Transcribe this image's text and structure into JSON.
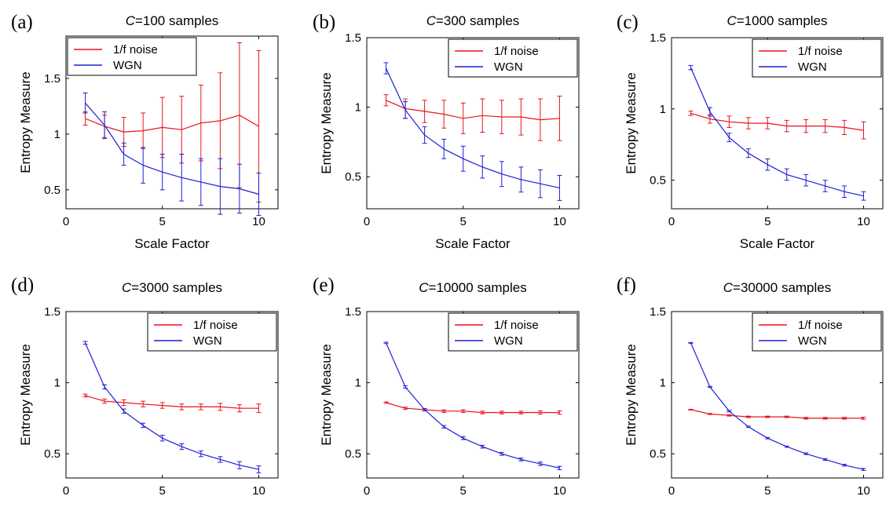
{
  "chart_data": [
    {
      "type": "line",
      "panel_label": "(a)",
      "title_var": "C",
      "title_rest": "=100 samples",
      "xlabel": "Scale Factor",
      "ylabel": "Entropy Measure",
      "xlim": [
        0,
        11
      ],
      "ylim": [
        0.33,
        1.88
      ],
      "xticks": [
        0,
        5,
        10
      ],
      "yticks": [
        0.5,
        1,
        1.5
      ],
      "yticklabels": [
        "0.5",
        "1",
        "1.5"
      ],
      "legend_position": "top-left",
      "x": [
        1,
        2,
        3,
        4,
        5,
        6,
        7,
        8,
        9,
        10
      ],
      "series": [
        {
          "name": "1/f noise",
          "color": "#e8141c",
          "values": [
            1.14,
            1.07,
            1.02,
            1.03,
            1.06,
            1.04,
            1.1,
            1.12,
            1.17,
            1.07
          ],
          "err": [
            0.06,
            0.1,
            0.13,
            0.16,
            0.27,
            0.3,
            0.34,
            0.43,
            0.65,
            0.68
          ]
        },
        {
          "name": "WGN",
          "color": "#1f1fd8",
          "values": [
            1.28,
            1.08,
            0.82,
            0.72,
            0.66,
            0.61,
            0.57,
            0.53,
            0.51,
            0.46
          ],
          "err": [
            0.09,
            0.12,
            0.1,
            0.16,
            0.16,
            0.21,
            0.21,
            0.25,
            0.22,
            0.19
          ]
        }
      ]
    },
    {
      "type": "line",
      "panel_label": "(b)",
      "title_var": "C",
      "title_rest": "=300 samples",
      "xlabel": "Scale Factor",
      "ylabel": "Entropy Measure",
      "xlim": [
        0,
        11
      ],
      "ylim": [
        0.27,
        1.5
      ],
      "xticks": [
        0,
        5,
        10
      ],
      "yticks": [
        0.5,
        1,
        1.5
      ],
      "yticklabels": [
        "0.5",
        "1",
        "1.5"
      ],
      "legend_position": "top-right",
      "x": [
        1,
        2,
        3,
        4,
        5,
        6,
        7,
        8,
        9,
        10
      ],
      "series": [
        {
          "name": "1/f noise",
          "color": "#e8141c",
          "values": [
            1.05,
            0.99,
            0.97,
            0.95,
            0.92,
            0.94,
            0.93,
            0.93,
            0.91,
            0.92
          ],
          "err": [
            0.04,
            0.07,
            0.08,
            0.1,
            0.11,
            0.12,
            0.12,
            0.13,
            0.15,
            0.16
          ]
        },
        {
          "name": "WGN",
          "color": "#1f1fd8",
          "values": [
            1.28,
            0.98,
            0.8,
            0.7,
            0.63,
            0.57,
            0.52,
            0.48,
            0.45,
            0.42
          ],
          "err": [
            0.04,
            0.06,
            0.06,
            0.07,
            0.09,
            0.08,
            0.09,
            0.09,
            0.1,
            0.09
          ]
        }
      ]
    },
    {
      "type": "line",
      "panel_label": "(c)",
      "title_var": "C",
      "title_rest": "=1000 samples",
      "xlabel": "Scale Factor",
      "ylabel": "Entropy Measure",
      "xlim": [
        0,
        11
      ],
      "ylim": [
        0.3,
        1.5
      ],
      "xticks": [
        0,
        5,
        10
      ],
      "yticks": [
        0.5,
        1,
        1.5
      ],
      "yticklabels": [
        "0.5",
        "1",
        "1.5"
      ],
      "legend_position": "top-right",
      "x": [
        1,
        2,
        3,
        4,
        5,
        6,
        7,
        8,
        9,
        10
      ],
      "series": [
        {
          "name": "1/f noise",
          "color": "#e8141c",
          "values": [
            0.97,
            0.93,
            0.91,
            0.9,
            0.9,
            0.88,
            0.88,
            0.88,
            0.87,
            0.85
          ],
          "err": [
            0.015,
            0.03,
            0.04,
            0.04,
            0.04,
            0.04,
            0.045,
            0.045,
            0.05,
            0.06
          ]
        },
        {
          "name": "WGN",
          "color": "#1f1fd8",
          "values": [
            1.29,
            0.98,
            0.8,
            0.69,
            0.61,
            0.54,
            0.5,
            0.46,
            0.42,
            0.39
          ],
          "err": [
            0.015,
            0.03,
            0.03,
            0.03,
            0.04,
            0.04,
            0.04,
            0.04,
            0.04,
            0.03
          ]
        }
      ]
    },
    {
      "type": "line",
      "panel_label": "(d)",
      "title_var": "C",
      "title_rest": "=3000 samples",
      "xlabel": "Scale Factor",
      "ylabel": "Entropy Measure",
      "xlim": [
        0,
        11
      ],
      "ylim": [
        0.33,
        1.5
      ],
      "xticks": [
        0,
        5,
        10
      ],
      "yticks": [
        0.5,
        1,
        1.5
      ],
      "yticklabels": [
        "0.5",
        "1",
        "1.5"
      ],
      "legend_position": "top-right",
      "x": [
        1,
        2,
        3,
        4,
        5,
        6,
        7,
        8,
        9,
        10
      ],
      "series": [
        {
          "name": "1/f noise",
          "color": "#e8141c",
          "values": [
            0.91,
            0.87,
            0.86,
            0.85,
            0.84,
            0.83,
            0.83,
            0.83,
            0.82,
            0.82
          ],
          "err": [
            0.01,
            0.015,
            0.02,
            0.02,
            0.02,
            0.02,
            0.02,
            0.025,
            0.025,
            0.03
          ]
        },
        {
          "name": "WGN",
          "color": "#1f1fd8",
          "values": [
            1.28,
            0.97,
            0.8,
            0.7,
            0.61,
            0.55,
            0.5,
            0.46,
            0.42,
            0.39
          ],
          "err": [
            0.01,
            0.015,
            0.015,
            0.015,
            0.02,
            0.02,
            0.02,
            0.02,
            0.025,
            0.025
          ]
        }
      ]
    },
    {
      "type": "line",
      "panel_label": "(e)",
      "title_var": "C",
      "title_rest": "=10000 samples",
      "xlabel": "Scale Factor",
      "ylabel": "Entropy Measure",
      "xlim": [
        0,
        11
      ],
      "ylim": [
        0.33,
        1.5
      ],
      "xticks": [
        0,
        5,
        10
      ],
      "yticks": [
        0.5,
        1,
        1.5
      ],
      "yticklabels": [
        "0.5",
        "1",
        "1.5"
      ],
      "legend_position": "top-right",
      "x": [
        1,
        2,
        3,
        4,
        5,
        6,
        7,
        8,
        9,
        10
      ],
      "series": [
        {
          "name": "1/f noise",
          "color": "#e8141c",
          "values": [
            0.86,
            0.82,
            0.81,
            0.8,
            0.8,
            0.79,
            0.79,
            0.79,
            0.79,
            0.79
          ],
          "err": [
            0.005,
            0.008,
            0.008,
            0.009,
            0.01,
            0.01,
            0.01,
            0.01,
            0.012,
            0.012
          ]
        },
        {
          "name": "WGN",
          "color": "#1f1fd8",
          "values": [
            1.28,
            0.97,
            0.81,
            0.69,
            0.61,
            0.55,
            0.5,
            0.46,
            0.43,
            0.4
          ],
          "err": [
            0.005,
            0.008,
            0.008,
            0.009,
            0.01,
            0.01,
            0.01,
            0.01,
            0.012,
            0.012
          ]
        }
      ]
    },
    {
      "type": "line",
      "panel_label": "(f)",
      "title_var": "C",
      "title_rest": "=30000 samples",
      "xlabel": "Scale Factor",
      "ylabel": "Entropy Measure",
      "xlim": [
        0,
        11
      ],
      "ylim": [
        0.33,
        1.5
      ],
      "xticks": [
        0,
        5,
        10
      ],
      "yticks": [
        0.5,
        1,
        1.5
      ],
      "yticklabels": [
        "0.5",
        "1",
        "1.5"
      ],
      "legend_position": "top-right",
      "x": [
        1,
        2,
        3,
        4,
        5,
        6,
        7,
        8,
        9,
        10
      ],
      "series": [
        {
          "name": "1/f noise",
          "color": "#e8141c",
          "values": [
            0.81,
            0.78,
            0.77,
            0.76,
            0.76,
            0.76,
            0.75,
            0.75,
            0.75,
            0.75
          ],
          "err": [
            0.003,
            0.004,
            0.005,
            0.005,
            0.005,
            0.005,
            0.006,
            0.006,
            0.006,
            0.007
          ]
        },
        {
          "name": "WGN",
          "color": "#1f1fd8",
          "values": [
            1.28,
            0.97,
            0.8,
            0.69,
            0.61,
            0.55,
            0.5,
            0.46,
            0.42,
            0.39
          ],
          "err": [
            0.003,
            0.004,
            0.005,
            0.005,
            0.005,
            0.005,
            0.006,
            0.006,
            0.006,
            0.007
          ]
        }
      ]
    }
  ]
}
